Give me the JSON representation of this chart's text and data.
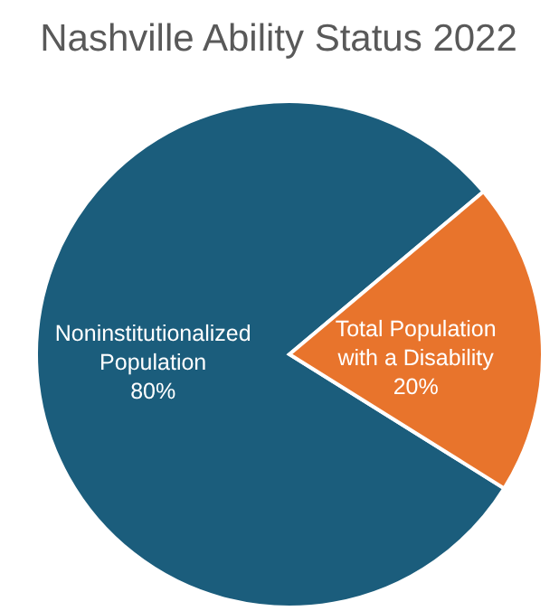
{
  "chart_data": {
    "type": "pie",
    "title": "Nashville Ability Status 2022",
    "categories": [
      "Noninstitutionalized Population",
      "Total Population with a Disability"
    ],
    "values": [
      80,
      20
    ],
    "colors": [
      "#1b5d7c",
      "#e8742c"
    ],
    "value_labels": [
      "80%",
      "20%"
    ]
  }
}
